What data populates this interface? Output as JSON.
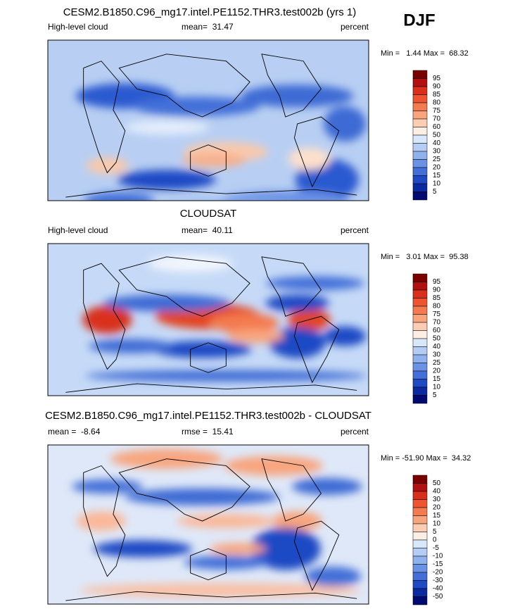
{
  "season": "DJF",
  "panels": [
    {
      "title": "CESM2.B1850.C96_mg17.intel.PE1152.THR3.test002b (yrs 1)",
      "left": "High-level cloud",
      "center": "mean=  31.47",
      "right": "percent",
      "minmax": "Min =   1.44 Max =  68.32",
      "levels": [
        "95",
        "90",
        "85",
        "80",
        "75",
        "70",
        "60",
        "50",
        "40",
        "30",
        "25",
        "20",
        "15",
        "10",
        "5"
      ]
    },
    {
      "title": "CLOUDSAT",
      "left": "High-level cloud",
      "center": "mean=  40.11",
      "right": "percent",
      "minmax": "Min =   3.01 Max =  95.38",
      "levels": [
        "95",
        "90",
        "85",
        "80",
        "75",
        "70",
        "60",
        "50",
        "40",
        "30",
        "25",
        "20",
        "15",
        "10",
        "5"
      ]
    },
    {
      "title": "CESM2.B1850.C96_mg17.intel.PE1152.THR3.test002b - CLOUDSAT",
      "left": "mean =  -8.64",
      "center": "rmse =  15.41",
      "right": "percent",
      "minmax": "Min = -51.90 Max =  34.32",
      "levels": [
        "50",
        "40",
        "30",
        "20",
        "15",
        "10",
        "5",
        "0",
        "-5",
        "-10",
        "-15",
        "-20",
        "-30",
        "-40",
        "-50"
      ]
    }
  ]
}
